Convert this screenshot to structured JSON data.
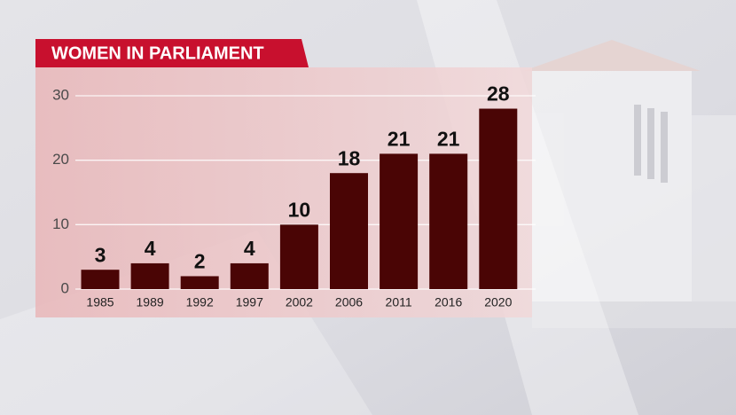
{
  "chart_data": {
    "type": "bar",
    "title": "WOMEN IN PARLIAMENT",
    "categories": [
      "1985",
      "1989",
      "1992",
      "1997",
      "2002",
      "2006",
      "2011",
      "2016",
      "2020"
    ],
    "values": [
      3,
      4,
      2,
      4,
      10,
      18,
      21,
      21,
      28
    ],
    "color": "#4a0505",
    "ylim": [
      0,
      30
    ],
    "yticks": [
      0,
      10,
      20,
      30
    ],
    "grid": true
  }
}
